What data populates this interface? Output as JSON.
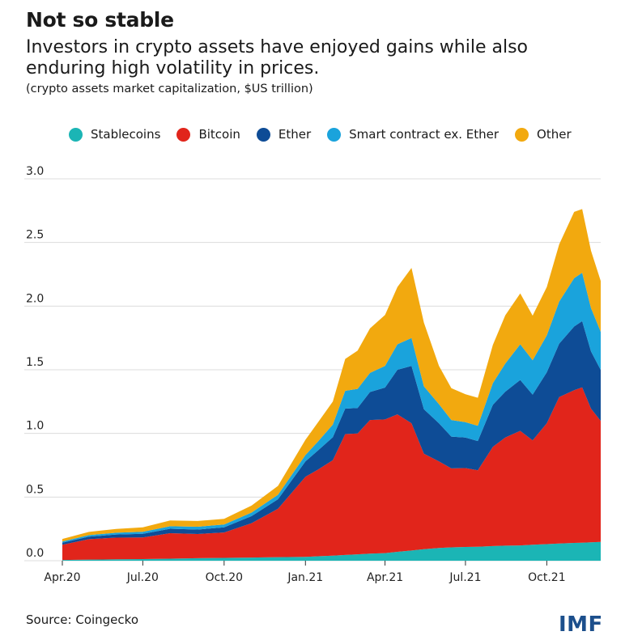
{
  "header": {
    "title": "Not so stable",
    "subtitle": "Investors in crypto assets have enjoyed gains while also enduring high volatility in prices.",
    "unit_note": "(crypto assets market capitalization, $US trillion)"
  },
  "footer": {
    "source": "Source: Coingecko",
    "logo_text": "IMF"
  },
  "chart_data": {
    "type": "area",
    "stacked": true,
    "grid": true,
    "legend_position": "top",
    "ylim": [
      0,
      3.0
    ],
    "y_ticks": [
      "0.0",
      "0.5",
      "1.0",
      "1.5",
      "2.0",
      "2.5",
      "3.0"
    ],
    "x_ticks": [
      {
        "label": "Apr.20",
        "x": "2020-04-01"
      },
      {
        "label": "Jul.20",
        "x": "2020-07-01"
      },
      {
        "label": "Oct.20",
        "x": "2020-10-01"
      },
      {
        "label": "Jan.21",
        "x": "2021-01-01"
      },
      {
        "label": "Apr.21",
        "x": "2021-04-01"
      },
      {
        "label": "Jul.21",
        "x": "2021-07-01"
      },
      {
        "label": "Oct.21",
        "x": "2021-10-01"
      }
    ],
    "x": [
      "2020-04-01",
      "2020-05-01",
      "2020-06-01",
      "2020-07-01",
      "2020-08-01",
      "2020-09-01",
      "2020-10-01",
      "2020-11-01",
      "2020-12-01",
      "2021-01-01",
      "2021-01-15",
      "2021-02-01",
      "2021-02-15",
      "2021-03-01",
      "2021-03-15",
      "2021-04-01",
      "2021-04-15",
      "2021-05-01",
      "2021-05-15",
      "2021-06-01",
      "2021-06-15",
      "2021-07-01",
      "2021-07-15",
      "2021-08-01",
      "2021-08-15",
      "2021-09-01",
      "2021-09-15",
      "2021-10-01",
      "2021-10-15",
      "2021-11-01",
      "2021-11-10",
      "2021-11-20",
      "2021-12-01"
    ],
    "series": [
      {
        "name": "Stablecoins",
        "color": "#1bb5b5",
        "values": [
          0.006,
          0.009,
          0.011,
          0.013,
          0.016,
          0.02,
          0.022,
          0.025,
          0.028,
          0.03,
          0.035,
          0.04,
          0.045,
          0.05,
          0.055,
          0.06,
          0.07,
          0.08,
          0.09,
          0.1,
          0.105,
          0.108,
          0.11,
          0.115,
          0.118,
          0.12,
          0.125,
          0.13,
          0.135,
          0.14,
          0.142,
          0.145,
          0.148
        ]
      },
      {
        "name": "Bitcoin",
        "color": "#e1251b",
        "values": [
          0.12,
          0.16,
          0.17,
          0.17,
          0.2,
          0.19,
          0.2,
          0.27,
          0.38,
          0.63,
          0.68,
          0.75,
          0.95,
          0.95,
          1.05,
          1.05,
          1.08,
          1.0,
          0.75,
          0.68,
          0.62,
          0.62,
          0.6,
          0.78,
          0.85,
          0.9,
          0.82,
          0.95,
          1.15,
          1.2,
          1.22,
          1.05,
          0.95
        ]
      },
      {
        "name": "Ether",
        "color": "#0e4c96",
        "values": [
          0.015,
          0.02,
          0.025,
          0.028,
          0.035,
          0.035,
          0.04,
          0.055,
          0.075,
          0.12,
          0.15,
          0.18,
          0.2,
          0.2,
          0.22,
          0.25,
          0.35,
          0.45,
          0.35,
          0.3,
          0.25,
          0.24,
          0.23,
          0.33,
          0.36,
          0.4,
          0.36,
          0.4,
          0.42,
          0.5,
          0.52,
          0.45,
          0.4
        ]
      },
      {
        "name": "Smart contract ex. Ether",
        "color": "#1aa3dc",
        "values": [
          0.01,
          0.012,
          0.014,
          0.016,
          0.02,
          0.022,
          0.022,
          0.028,
          0.035,
          0.05,
          0.07,
          0.1,
          0.14,
          0.15,
          0.15,
          0.17,
          0.2,
          0.22,
          0.18,
          0.15,
          0.13,
          0.12,
          0.12,
          0.17,
          0.22,
          0.28,
          0.27,
          0.29,
          0.33,
          0.38,
          0.38,
          0.34,
          0.3
        ]
      },
      {
        "name": "Other",
        "color": "#f2a90f",
        "values": [
          0.02,
          0.025,
          0.03,
          0.035,
          0.045,
          0.045,
          0.045,
          0.055,
          0.07,
          0.12,
          0.15,
          0.18,
          0.25,
          0.3,
          0.35,
          0.4,
          0.45,
          0.55,
          0.5,
          0.3,
          0.25,
          0.22,
          0.22,
          0.3,
          0.38,
          0.4,
          0.35,
          0.38,
          0.45,
          0.52,
          0.5,
          0.45,
          0.4
        ]
      }
    ]
  }
}
